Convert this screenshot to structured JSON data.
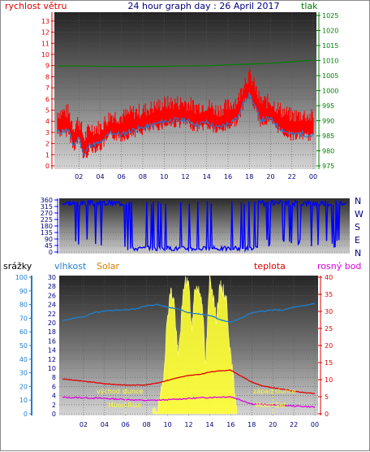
{
  "header": {
    "title": "24 hour graph day : 26 April 2017",
    "left_label": "rychlost větru",
    "right_label": "tlak"
  },
  "bottom_header": {
    "precip_label": "srážky",
    "humidity_label": "vlhkost",
    "solar_label": "Solar",
    "temp_label": "teplota",
    "dew_label": "rosný bod"
  },
  "annotations": {
    "sunrise": "východ slunce",
    "sunset": "západ slunce",
    "moonrise": "Moon Rise",
    "moonset": "Moon Set"
  },
  "colors": {
    "wind": "#ff0000",
    "gust": "#1e7fd0",
    "pressure": "#008000",
    "direction": "#0000ff",
    "humidity": "#1e7fd0",
    "temp": "#e00000",
    "dew": "#e000e0",
    "solar": "#ffff33",
    "title": "#000080"
  },
  "chart_data": [
    {
      "type": "line",
      "name": "wind-pressure",
      "x_tick_labels": [
        "02",
        "04",
        "06",
        "08",
        "10",
        "12",
        "14",
        "16",
        "18",
        "20",
        "22",
        "00"
      ],
      "y_left": {
        "label": "rychlost větru",
        "ticks": [
          0,
          1,
          2,
          3,
          4,
          5,
          6,
          7,
          8,
          9,
          10,
          11,
          12,
          13
        ],
        "ylim": [
          0,
          13.5
        ]
      },
      "y_right": {
        "label": "tlak",
        "ticks": [
          975,
          980,
          985,
          990,
          995,
          1000,
          1005,
          1010,
          1015,
          1020,
          1025
        ],
        "ylim": [
          975,
          1025
        ]
      },
      "series": [
        {
          "role": "pressure",
          "x": [
            0,
            2,
            4,
            6,
            8,
            10,
            12,
            14,
            16,
            18,
            20,
            22,
            24
          ],
          "values": [
            1008.2,
            1008.2,
            1008.1,
            1008.0,
            1008.0,
            1008.1,
            1008.2,
            1008.3,
            1008.6,
            1008.8,
            1009.1,
            1009.6,
            1010.2
          ]
        },
        {
          "role": "wind_avg",
          "x": [
            0,
            1,
            1.5,
            2,
            2.5,
            3,
            4,
            5,
            6,
            7,
            8,
            9,
            10,
            11,
            12,
            13,
            14,
            15,
            16,
            17,
            17.5,
            18,
            18.5,
            19,
            20,
            21,
            22,
            23,
            24
          ],
          "values": [
            3.8,
            3.9,
            2.5,
            3.2,
            1.5,
            2.4,
            2.5,
            3.6,
            3.4,
            3.8,
            4.0,
            4.3,
            4.6,
            4.7,
            4.7,
            4.3,
            4.5,
            4.0,
            4.4,
            5.0,
            6.6,
            7.2,
            6.2,
            4.8,
            4.8,
            4.0,
            3.5,
            3.6,
            3.4
          ]
        },
        {
          "role": "wind_gust",
          "x": [
            0,
            1,
            1.5,
            2,
            2.5,
            3,
            4,
            5,
            6,
            7,
            8,
            9,
            10,
            11,
            12,
            13,
            14,
            15,
            16,
            17,
            17.5,
            18,
            18.5,
            19,
            20,
            21,
            22,
            23,
            24
          ],
          "values": [
            3.0,
            3.2,
            1.8,
            2.6,
            0.9,
            1.9,
            2.0,
            3.0,
            2.8,
            3.2,
            3.4,
            3.7,
            4.0,
            4.1,
            4.1,
            3.7,
            3.9,
            3.4,
            3.8,
            4.4,
            5.8,
            6.4,
            5.4,
            4.2,
            4.2,
            3.3,
            2.8,
            2.9,
            2.7
          ]
        }
      ]
    },
    {
      "type": "line",
      "name": "wind-direction",
      "y_left": {
        "ticks": [
          0,
          45,
          90,
          135,
          180,
          225,
          270,
          315,
          360
        ],
        "ylim": [
          0,
          360
        ]
      },
      "y_right_labels": [
        "N",
        "W",
        "S",
        "E",
        "N"
      ],
      "series": [
        {
          "role": "direction",
          "x": [
            0,
            2,
            4,
            5,
            6,
            8,
            10,
            12,
            14,
            16,
            18,
            20,
            22,
            24
          ],
          "values": [
            340,
            350,
            320,
            330,
            40,
            20,
            25,
            30,
            20,
            30,
            330,
            345,
            340,
            350
          ]
        }
      ]
    },
    {
      "type": "line",
      "name": "temp-humidity-solar",
      "y_precip": {
        "label": "srážky",
        "ticks": [
          0,
          2,
          4,
          6,
          8,
          10,
          12,
          14,
          16,
          18,
          20,
          22,
          24,
          26,
          28,
          30
        ],
        "ylim": [
          0,
          30
        ]
      },
      "y_humidity": {
        "label": "vlhkost",
        "ticks": [
          0,
          10,
          20,
          30,
          40,
          50,
          60,
          70,
          80,
          90,
          100
        ],
        "ylim": [
          0,
          100
        ]
      },
      "y_temp": {
        "label": "teplota",
        "ticks": [
          0,
          5,
          10,
          15,
          20,
          25,
          30,
          35,
          40
        ],
        "ylim": [
          0,
          40
        ]
      },
      "series": [
        {
          "role": "humidity",
          "x": [
            0,
            1,
            2,
            3,
            4,
            5,
            6,
            7,
            8,
            9,
            10,
            11,
            12,
            13,
            14,
            15,
            16,
            17,
            18,
            19,
            20,
            21,
            22,
            23,
            24
          ],
          "values": [
            68,
            70,
            71,
            74,
            75,
            76,
            76,
            77,
            79,
            80,
            78,
            77,
            74,
            73,
            72,
            69,
            67,
            70,
            74,
            75,
            76,
            76,
            78,
            79,
            81
          ]
        },
        {
          "role": "temp",
          "x": [
            0,
            1,
            2,
            3,
            4,
            5,
            6,
            7,
            8,
            9,
            10,
            11,
            12,
            13,
            14,
            15,
            16,
            17,
            18,
            19,
            20,
            21,
            22,
            23,
            24
          ],
          "values": [
            10.2,
            9.9,
            9.5,
            9.2,
            8.8,
            8.6,
            8.4,
            8.4,
            8.5,
            9.0,
            9.8,
            10.6,
            11.2,
            11.5,
            12.2,
            12.6,
            12.8,
            11.0,
            9.3,
            8.2,
            7.6,
            7.2,
            6.6,
            6.2,
            5.9
          ]
        },
        {
          "role": "dew",
          "x": [
            0,
            2,
            4,
            6,
            8,
            10,
            12,
            14,
            16,
            17,
            18,
            20,
            22,
            24
          ],
          "values": [
            4.8,
            4.7,
            4.5,
            4.2,
            3.9,
            4.1,
            4.5,
            4.8,
            5.0,
            4.0,
            2.9,
            2.6,
            2.3,
            2.0
          ]
        },
        {
          "role": "solar",
          "x": [
            8.6,
            9,
            9.3,
            9.6,
            10,
            10.3,
            10.6,
            11,
            11.3,
            11.6,
            12,
            12.3,
            12.6,
            13,
            13.3,
            13.6,
            14,
            14.3,
            14.6,
            15,
            15.3,
            15.6,
            16,
            16.3,
            16.6
          ],
          "values": [
            0,
            1,
            3,
            8,
            22,
            27,
            25,
            12,
            21,
            29,
            29,
            18,
            28,
            27,
            25,
            10,
            30,
            27,
            21,
            28,
            27,
            25,
            12,
            7,
            1
          ]
        }
      ]
    }
  ]
}
